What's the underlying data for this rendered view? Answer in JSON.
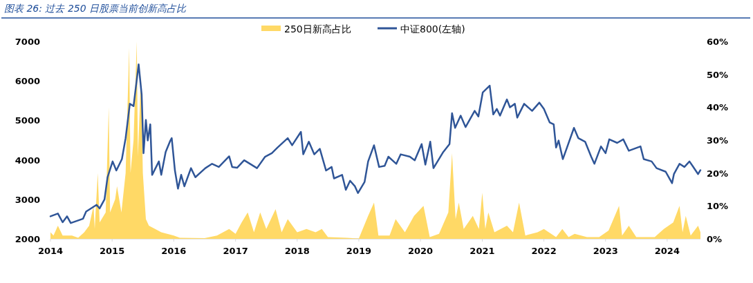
{
  "chart_data": {
    "type": "line",
    "title": "图表 26:  过去 250 日股票当前创新高占比",
    "xlim": [
      "2014-01-01",
      "2024-07-16"
    ],
    "xticks": [
      {
        "value": "2014-01-01",
        "label": "2014"
      },
      {
        "value": "2015-01-01",
        "label": "2015"
      },
      {
        "value": "2016-01-01",
        "label": "2016"
      },
      {
        "value": "2017-01-01",
        "label": "2017"
      },
      {
        "value": "2018-01-01",
        "label": "2018"
      },
      {
        "value": "2019-01-01",
        "label": "2019"
      },
      {
        "value": "2020-01-01",
        "label": "2020"
      },
      {
        "value": "2021-01-01",
        "label": "2021"
      },
      {
        "value": "2022-01-01",
        "label": "2022"
      },
      {
        "value": "2023-01-01",
        "label": "2023"
      },
      {
        "value": "2024-01-01",
        "label": "2024"
      }
    ],
    "ylim": [
      2000,
      7000
    ],
    "yticks": [
      2000,
      3000,
      4000,
      5000,
      6000,
      7000
    ],
    "y2lim": [
      0,
      60
    ],
    "y2ticks": [
      {
        "value": 0,
        "label": "0%"
      },
      {
        "value": 10,
        "label": "10%"
      },
      {
        "value": 20,
        "label": "20%"
      },
      {
        "value": 30,
        "label": "30%"
      },
      {
        "value": 40,
        "label": "40%"
      },
      {
        "value": 50,
        "label": "50%"
      },
      {
        "value": 60,
        "label": "60%"
      }
    ],
    "legend": "top",
    "grid": false,
    "series": [
      {
        "name": "250日新高占比",
        "type": "area",
        "axis": "y2",
        "color": "#ffd966",
        "x": [
          "2014-01-01",
          "2014-01-19",
          "2014-02-14",
          "2014-03-14",
          "2014-05-08",
          "2014-06-14",
          "2014-07-20",
          "2014-08-18",
          "2014-09-13",
          "2014-09-20",
          "2014-10-08",
          "2014-10-19",
          "2014-11-24",
          "2014-12-12",
          "2014-12-20",
          "2015-01-19",
          "2015-01-30",
          "2015-02-25",
          "2015-03-22",
          "2015-04-12",
          "2015-04-20",
          "2015-05-08",
          "2015-05-27",
          "2015-06-03",
          "2015-06-21",
          "2015-07-02",
          "2015-07-20",
          "2015-08-07",
          "2015-09-13",
          "2015-10-19",
          "2016-01-01",
          "2016-02-06",
          "2016-07-02",
          "2016-09-13",
          "2016-11-24",
          "2017-01-01",
          "2017-02-06",
          "2017-03-14",
          "2017-04-20",
          "2017-05-27",
          "2017-07-02",
          "2017-08-26",
          "2017-10-01",
          "2017-11-06",
          "2018-01-01",
          "2018-02-25",
          "2018-04-20",
          "2018-05-27",
          "2018-07-02",
          "2018-10-19",
          "2019-01-01",
          "2019-02-25",
          "2019-04-01",
          "2019-04-27",
          "2019-07-02",
          "2019-08-07",
          "2019-10-01",
          "2019-11-24",
          "2020-01-19",
          "2020-02-25",
          "2020-04-20",
          "2020-06-14",
          "2020-07-06",
          "2020-07-27",
          "2020-08-15",
          "2020-09-13",
          "2020-11-06",
          "2020-12-12",
          "2021-01-01",
          "2021-01-19",
          "2021-02-06",
          "2021-03-14",
          "2021-05-27",
          "2021-07-02",
          "2021-08-07",
          "2021-09-13",
          "2021-11-24",
          "2022-01-01",
          "2022-03-14",
          "2022-04-20",
          "2022-05-27",
          "2022-07-02",
          "2022-09-13",
          "2022-11-24",
          "2023-01-19",
          "2023-02-25",
          "2023-03-22",
          "2023-04-09",
          "2023-05-19",
          "2023-07-02",
          "2023-10-19",
          "2023-12-12",
          "2024-02-06",
          "2024-03-14",
          "2024-04-01",
          "2024-04-20",
          "2024-05-19",
          "2024-07-02",
          "2024-07-16"
        ],
        "values": [
          2,
          1,
          4,
          1,
          1,
          0.3,
          2,
          4,
          10,
          3,
          20,
          5,
          8,
          40,
          8,
          12,
          16,
          8,
          20,
          58,
          20,
          30,
          60,
          25,
          50,
          20,
          6,
          4,
          3,
          2,
          1,
          0.3,
          0.2,
          1,
          3,
          1.5,
          5,
          8,
          2,
          8,
          3,
          9,
          2,
          6,
          2,
          3,
          2,
          3,
          0.5,
          0.3,
          0.1,
          7,
          11,
          1,
          1,
          6,
          2,
          7,
          10,
          0.5,
          1.5,
          8,
          26,
          6,
          11,
          3,
          7,
          3,
          14,
          3,
          8,
          2,
          4,
          2,
          11,
          1,
          2,
          3,
          0.5,
          3,
          0.5,
          1.5,
          0.5,
          0.5,
          2.5,
          7,
          10,
          1,
          4,
          0.5,
          0.5,
          3,
          5,
          10,
          2,
          7,
          1,
          4,
          2
        ]
      },
      {
        "name": "中证800(左轴)",
        "color": "#2f5597",
        "x": [
          "2014-01-01",
          "2014-02-14",
          "2014-03-14",
          "2014-04-09",
          "2014-05-01",
          "2014-07-13",
          "2014-07-31",
          "2014-10-01",
          "2014-10-19",
          "2014-11-17",
          "2014-12-05",
          "2015-01-04",
          "2015-01-26",
          "2015-02-28",
          "2015-03-22",
          "2015-04-16",
          "2015-05-08",
          "2015-06-07",
          "2015-06-25",
          "2015-07-06",
          "2015-07-20",
          "2015-07-31",
          "2015-08-15",
          "2015-08-26",
          "2015-10-05",
          "2015-10-19",
          "2015-11-14",
          "2015-12-12",
          "2015-12-20",
          "2016-01-08",
          "2016-01-26",
          "2016-02-14",
          "2016-03-04",
          "2016-04-12",
          "2016-05-08",
          "2016-07-06",
          "2016-08-15",
          "2016-09-24",
          "2016-11-24",
          "2016-12-12",
          "2017-01-10",
          "2017-02-21",
          "2017-05-08",
          "2017-06-25",
          "2017-08-04",
          "2017-09-06",
          "2017-11-06",
          "2017-12-02",
          "2018-01-23",
          "2018-02-06",
          "2018-03-11",
          "2018-04-12",
          "2018-05-15",
          "2018-06-21",
          "2018-07-24",
          "2018-08-07",
          "2018-09-24",
          "2018-10-16",
          "2018-11-10",
          "2018-12-09",
          "2018-12-27",
          "2019-02-04",
          "2019-02-25",
          "2019-04-01",
          "2019-05-01",
          "2019-06-03",
          "2019-06-25",
          "2019-08-11",
          "2019-09-06",
          "2019-10-30",
          "2019-11-28",
          "2020-01-08",
          "2020-01-30",
          "2020-02-28",
          "2020-03-18",
          "2020-05-15",
          "2020-06-21",
          "2020-07-06",
          "2020-07-24",
          "2020-08-26",
          "2020-09-24",
          "2020-11-17",
          "2020-12-09",
          "2021-01-04",
          "2021-02-14",
          "2021-03-07",
          "2021-03-28",
          "2021-04-16",
          "2021-05-27",
          "2021-06-14",
          "2021-07-13",
          "2021-07-27",
          "2021-09-06",
          "2021-10-23",
          "2021-12-05",
          "2022-01-01",
          "2022-02-04",
          "2022-02-28",
          "2022-03-14",
          "2022-03-29",
          "2022-04-23",
          "2022-05-15",
          "2022-06-28",
          "2022-07-24",
          "2022-09-02",
          "2022-10-08",
          "2022-10-27",
          "2022-12-05",
          "2023-01-01",
          "2023-01-23",
          "2023-03-11",
          "2023-04-16",
          "2023-05-19",
          "2023-07-27",
          "2023-08-15",
          "2023-10-01",
          "2023-10-30",
          "2023-12-23",
          "2024-01-30",
          "2024-02-10",
          "2024-03-14",
          "2024-04-12",
          "2024-05-12",
          "2024-05-30",
          "2024-07-02",
          "2024-07-16"
        ],
        "values": [
          2570,
          2640,
          2420,
          2570,
          2400,
          2510,
          2690,
          2860,
          2770,
          3000,
          3560,
          3960,
          3730,
          4020,
          4550,
          5420,
          5360,
          6420,
          5650,
          4170,
          5010,
          4490,
          4900,
          3620,
          3960,
          3620,
          4200,
          4490,
          4550,
          3730,
          3270,
          3620,
          3330,
          3790,
          3560,
          3790,
          3900,
          3820,
          4090,
          3820,
          3800,
          3990,
          3790,
          4080,
          4170,
          4310,
          4550,
          4370,
          4710,
          4140,
          4460,
          4140,
          4280,
          3730,
          3820,
          3530,
          3620,
          3240,
          3470,
          3330,
          3160,
          3440,
          3960,
          4370,
          3820,
          3850,
          4080,
          3900,
          4140,
          4080,
          3990,
          4400,
          3880,
          4460,
          3790,
          4200,
          4400,
          5180,
          4810,
          5120,
          4830,
          5240,
          5100,
          5710,
          5880,
          5150,
          5290,
          5120,
          5530,
          5330,
          5420,
          5070,
          5420,
          5240,
          5450,
          5290,
          4950,
          4900,
          4310,
          4490,
          4020,
          4280,
          4810,
          4550,
          4460,
          4080,
          3900,
          4340,
          4170,
          4520,
          4430,
          4520,
          4230,
          4340,
          4020,
          3960,
          3790,
          3700,
          3410,
          3640,
          3900,
          3820,
          3960,
          3850,
          3640,
          3740
        ]
      }
    ]
  }
}
